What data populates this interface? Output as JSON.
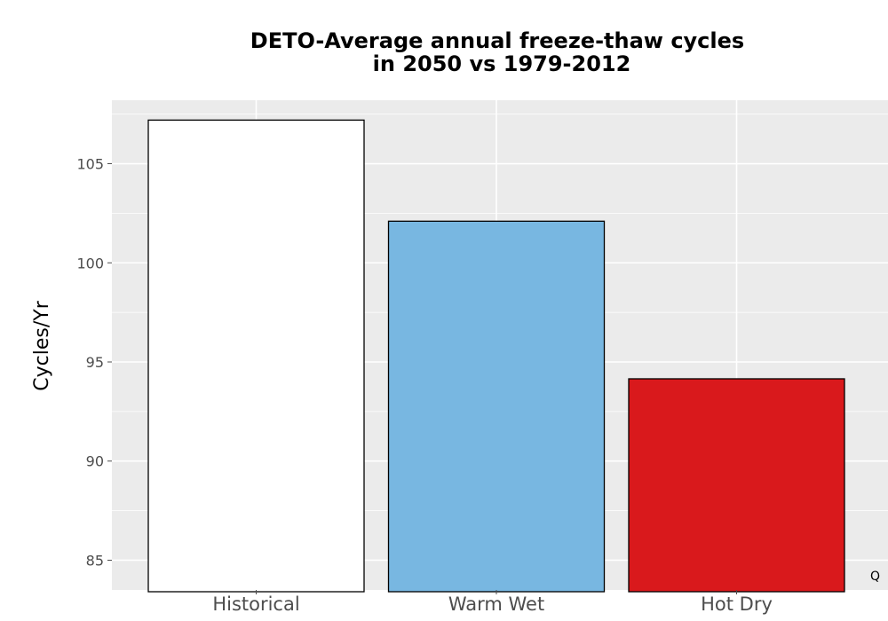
{
  "chart_data": {
    "type": "bar",
    "title_lines": [
      "DETO-Average annual freeze-thaw cycles",
      "in 2050 vs 1979-2012"
    ],
    "categories": [
      "Historical",
      "Warm Wet",
      "Hot Dry"
    ],
    "values": [
      107.2,
      102.1,
      94.15
    ],
    "colors": [
      "#ffffff",
      "#78b7e1",
      "#d9191c"
    ],
    "xlabel": "",
    "ylabel": "Cycles/Yr",
    "ylim": [
      83.5,
      108.2
    ],
    "yticks": [
      85,
      90,
      95,
      100,
      105
    ],
    "grid": true,
    "panel_background": "#ebebeb",
    "corner_text": "Q"
  }
}
